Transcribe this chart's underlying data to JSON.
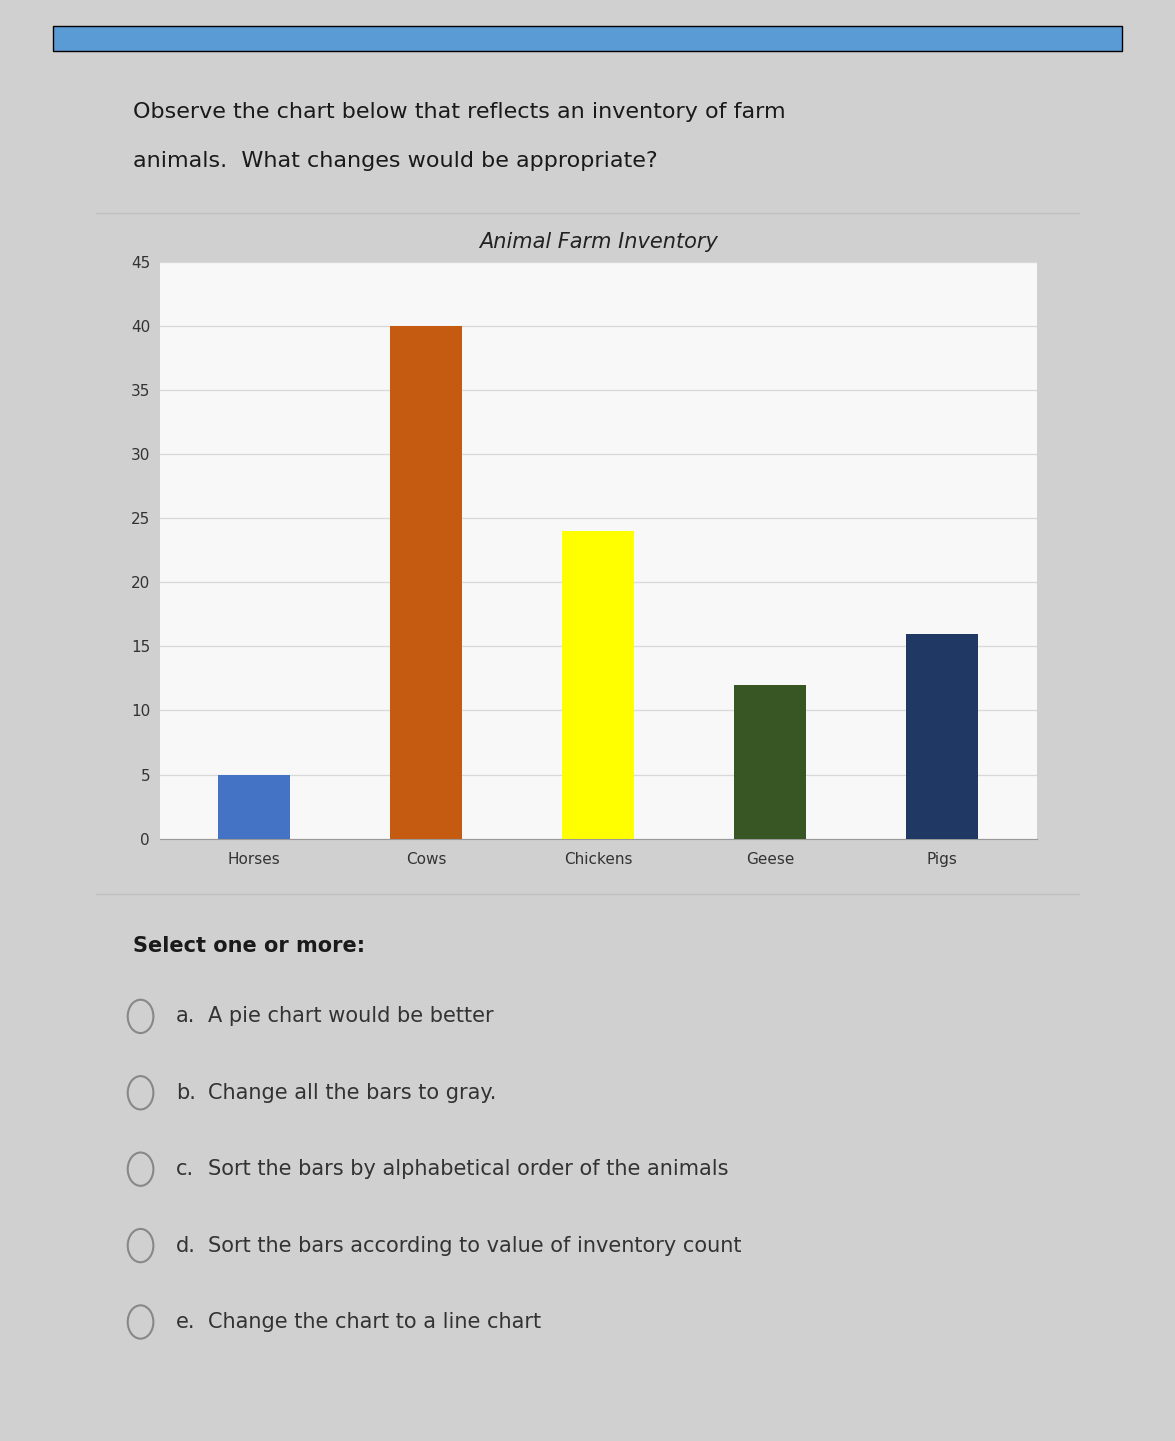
{
  "title": "Animal Farm Inventory",
  "categories": [
    "Horses",
    "Cows",
    "Chickens",
    "Geese",
    "Pigs"
  ],
  "values": [
    5,
    40,
    24,
    12,
    16
  ],
  "bar_colors": [
    "#4472C4",
    "#C55A11",
    "#FFFF00",
    "#375623",
    "#1F3864"
  ],
  "ylim": [
    0,
    45
  ],
  "yticks": [
    0,
    5,
    10,
    15,
    20,
    25,
    30,
    35,
    40,
    45
  ],
  "question_line1": "Observe the chart below that reflects an inventory of farm",
  "question_line2": "animals.  What changes would be appropriate?",
  "select_text": "Select one or more:",
  "options": [
    {
      "letter": "a.",
      "text": "A pie chart would be better"
    },
    {
      "letter": "b.",
      "text": "Change all the bars to gray."
    },
    {
      "letter": "c.",
      "text": "Sort the bars by alphabetical order of the animals"
    },
    {
      "letter": "d.",
      "text": "Sort the bars according to value of inventory count"
    },
    {
      "letter": "e.",
      "text": "Change the chart to a line chart"
    }
  ],
  "outer_bg": "#d0d0d0",
  "card_bg": "#ffffff",
  "grid_color": "#d8d8d8",
  "chart_bg": "#f8f8f8",
  "top_stripe_color": "#5B9BD5",
  "title_fontsize": 15,
  "tick_fontsize": 11,
  "question_fontsize": 16,
  "select_fontsize": 15,
  "option_fontsize": 15
}
